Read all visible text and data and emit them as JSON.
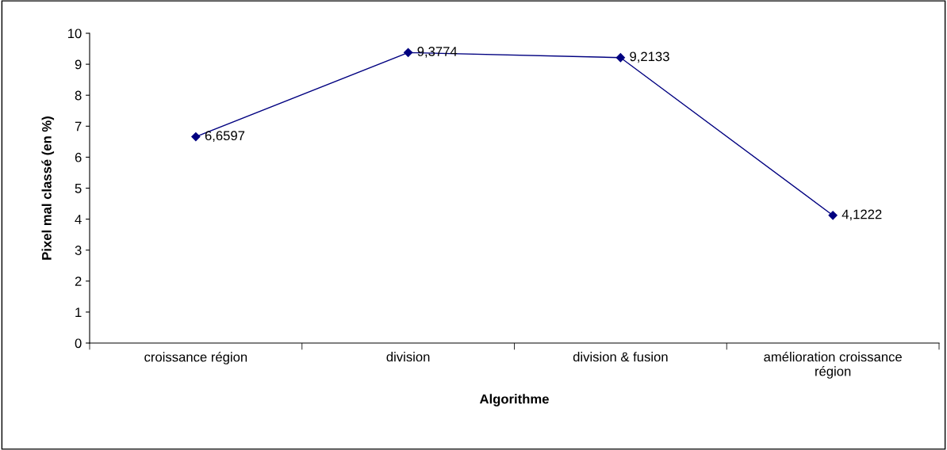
{
  "chart_data": {
    "type": "line",
    "categories": [
      "croissance région",
      "division",
      "division & fusion",
      "amélioration croissance\nrégion"
    ],
    "series": [
      {
        "color": "#000080",
        "values": [
          6.6597,
          9.3774,
          9.2133,
          4.1222
        ],
        "value_labels": [
          "6,6597",
          "9,3774",
          "9,2133",
          "4,1222"
        ]
      }
    ],
    "xlabel": "Algorithme",
    "ylabel": "Pixel mal classé (en %)",
    "ylim": [
      0,
      10
    ],
    "yticks": [
      0,
      1,
      2,
      3,
      4,
      5,
      6,
      7,
      8,
      9,
      10
    ],
    "marker": "diamond",
    "line_style": "solid",
    "grid": false,
    "legend": false
  }
}
